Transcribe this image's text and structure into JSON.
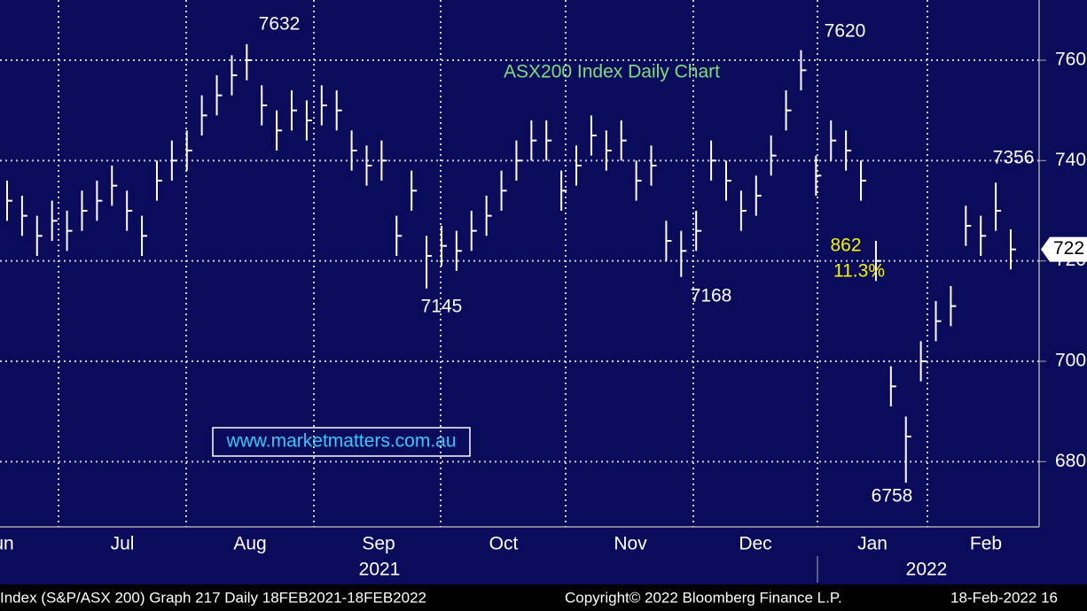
{
  "chart_data": {
    "type": "ohlc",
    "title": "ASX200 Index Daily Chart",
    "watermark": "www.marketmatters.com.au",
    "series": [
      {
        "name": "ASX200",
        "color": "#ffffff",
        "close": [
          7320,
          7290,
          7250,
          7280,
          7260,
          7300,
          7320,
          7350,
          7300,
          7250,
          7360,
          7400,
          7420,
          7490,
          7530,
          7570,
          7600,
          7510,
          7460,
          7500,
          7480,
          7510,
          7500,
          7420,
          7390,
          7400,
          7250,
          7340,
          7210,
          7230,
          7220,
          7260,
          7290,
          7340,
          7400,
          7440,
          7440,
          7340,
          7390,
          7450,
          7420,
          7440,
          7360,
          7390,
          7240,
          7220,
          7260,
          7400,
          7360,
          7300,
          7330,
          7410,
          7500,
          7580,
          7370,
          7440,
          7420,
          7360,
          7200,
          6950,
          6850,
          7000,
          7080,
          7110,
          7270,
          7250,
          7300,
          7223
        ],
        "high": [
          7360,
          7330,
          7290,
          7320,
          7300,
          7340,
          7360,
          7390,
          7340,
          7290,
          7400,
          7440,
          7460,
          7530,
          7570,
          7610,
          7632,
          7550,
          7500,
          7540,
          7520,
          7550,
          7540,
          7460,
          7430,
          7440,
          7290,
          7380,
          7250,
          7270,
          7260,
          7300,
          7330,
          7380,
          7440,
          7480,
          7480,
          7380,
          7430,
          7490,
          7460,
          7480,
          7400,
          7430,
          7280,
          7260,
          7300,
          7440,
          7400,
          7340,
          7370,
          7450,
          7540,
          7620,
          7410,
          7480,
          7460,
          7400,
          7240,
          6990,
          6890,
          7040,
          7120,
          7150,
          7310,
          7290,
          7356,
          7263
        ],
        "low": [
          7280,
          7250,
          7210,
          7240,
          7220,
          7260,
          7280,
          7310,
          7260,
          7210,
          7320,
          7360,
          7380,
          7450,
          7490,
          7530,
          7560,
          7470,
          7420,
          7460,
          7440,
          7470,
          7460,
          7380,
          7350,
          7360,
          7210,
          7300,
          7145,
          7190,
          7180,
          7220,
          7250,
          7300,
          7360,
          7400,
          7400,
          7300,
          7350,
          7410,
          7380,
          7400,
          7320,
          7350,
          7200,
          7168,
          7220,
          7360,
          7320,
          7260,
          7290,
          7370,
          7460,
          7540,
          7330,
          7400,
          7380,
          7320,
          7160,
          6910,
          6758,
          6960,
          7040,
          7070,
          7230,
          7210,
          7260,
          7183
        ]
      }
    ],
    "ylim": [
      6670,
      7720
    ],
    "yticks": [
      {
        "value": 6800,
        "label": "680"
      },
      {
        "value": 7000,
        "label": "700"
      },
      {
        "value": 7200,
        "label": "720"
      },
      {
        "value": 7400,
        "label": "740"
      },
      {
        "value": 7600,
        "label": "760"
      }
    ],
    "last_price": {
      "value": 7223,
      "label": "722"
    },
    "months": [
      "un",
      "Jul",
      "Aug",
      "Sep",
      "Oct",
      "Nov",
      "Dec",
      "Jan",
      "Feb"
    ],
    "years": [
      "2021",
      "2022"
    ],
    "annotations": [
      "7632",
      "7145",
      "7168",
      "7620",
      "6758",
      "7356",
      "862",
      "11.3%"
    ],
    "grid": true,
    "footer": [
      "Index (S&P/ASX 200) Graph 217  Daily 18FEB2021-18FEB2022",
      "Copyright© 2022 Bloomberg Finance L.P.",
      "18-Feb-2022 16"
    ]
  }
}
